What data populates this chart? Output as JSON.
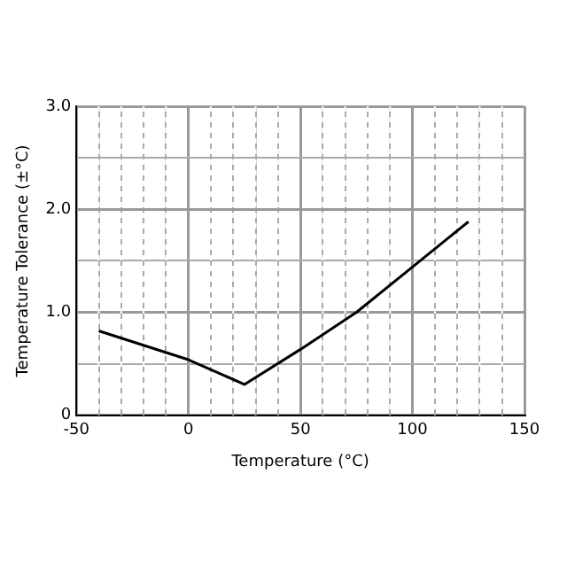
{
  "chart_data": {
    "type": "line",
    "xlabel": "Temperature (°C)",
    "ylabel": "Temperature Tolerance (±°C)",
    "x": [
      -40,
      0,
      25,
      50,
      75,
      100,
      125
    ],
    "series": [
      {
        "color": "#000000",
        "values": [
          0.82,
          0.54,
          0.3,
          0.64,
          1.0,
          1.44,
          1.88
        ]
      }
    ],
    "xlim": [
      -50,
      150
    ],
    "xticks": [
      -50,
      {
        "value": -40,
        "label": null
      },
      {
        "value": -30,
        "label": null
      },
      {
        "value": -20,
        "label": null
      },
      {
        "value": -10,
        "label": null
      },
      0,
      {
        "value": 10,
        "label": null
      },
      {
        "value": 20,
        "label": null
      },
      {
        "value": 30,
        "label": null
      },
      {
        "value": 40,
        "label": null
      },
      50,
      {
        "value": 60,
        "label": null
      },
      {
        "value": 70,
        "label": null
      },
      {
        "value": 80,
        "label": null
      },
      {
        "value": 90,
        "label": null
      },
      100,
      {
        "value": 110,
        "label": null
      },
      {
        "value": 120,
        "label": null
      },
      {
        "value": 130,
        "label": null
      },
      {
        "value": 140,
        "label": null
      },
      150
    ],
    "ylim": [
      0,
      3
    ],
    "yticks": [
      0,
      {
        "value": 0.5,
        "label": null
      },
      {
        "value": 1,
        "label": "1.0"
      },
      {
        "value": 1.5,
        "label": null
      },
      {
        "value": 2,
        "label": "2.0"
      },
      {
        "value": 2.5,
        "label": null
      },
      {
        "value": 3,
        "label": "3.0"
      }
    ],
    "grid": true,
    "legend": false,
    "marker": "none",
    "line_style": "solid"
  }
}
